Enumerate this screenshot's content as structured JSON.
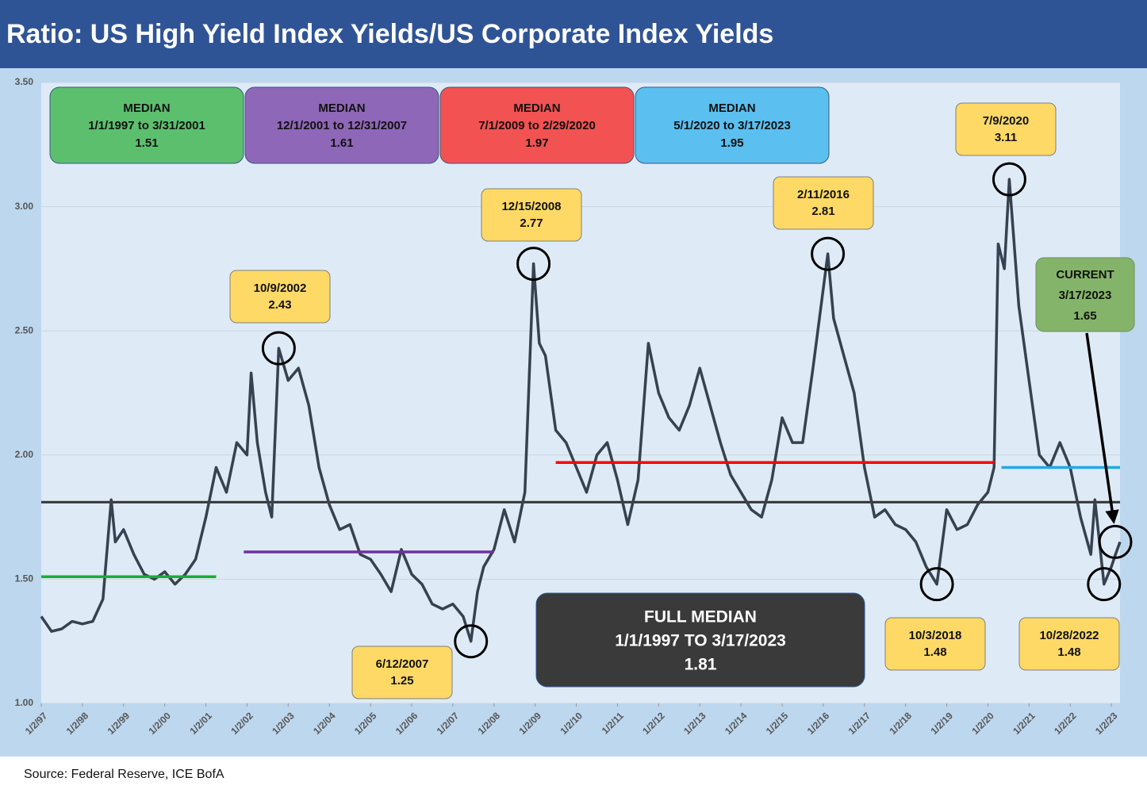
{
  "chart_data": {
    "type": "line",
    "title": "Ratio: US High Yield Index Yields/US Corporate Index Yields",
    "source": "Source: Federal Reserve, ICE BofA",
    "xlim": [
      1997.0,
      2023.21
    ],
    "ylim": [
      1.0,
      3.5
    ],
    "yticks": [
      {
        "value": 1.0,
        "label": "1.00"
      },
      {
        "value": 1.5,
        "label": "1.50"
      },
      {
        "value": 2.0,
        "label": "2.00"
      },
      {
        "value": 2.5,
        "label": "2.50"
      },
      {
        "value": 3.0,
        "label": "3.00"
      },
      {
        "value": 3.5,
        "label": "3.50"
      }
    ],
    "xticks": [
      {
        "value": 1997,
        "label": "1/2/97"
      },
      {
        "value": 1998,
        "label": "1/2/98"
      },
      {
        "value": 1999,
        "label": "1/2/99"
      },
      {
        "value": 2000,
        "label": "1/2/00"
      },
      {
        "value": 2001,
        "label": "1/2/01"
      },
      {
        "value": 2002,
        "label": "1/2/02"
      },
      {
        "value": 2003,
        "label": "1/2/03"
      },
      {
        "value": 2004,
        "label": "1/2/04"
      },
      {
        "value": 2005,
        "label": "1/2/05"
      },
      {
        "value": 2006,
        "label": "1/2/06"
      },
      {
        "value": 2007,
        "label": "1/2/07"
      },
      {
        "value": 2008,
        "label": "1/2/08"
      },
      {
        "value": 2009,
        "label": "1/2/09"
      },
      {
        "value": 2010,
        "label": "1/2/10"
      },
      {
        "value": 2011,
        "label": "1/2/11"
      },
      {
        "value": 2012,
        "label": "1/2/12"
      },
      {
        "value": 2013,
        "label": "1/2/13"
      },
      {
        "value": 2014,
        "label": "1/2/14"
      },
      {
        "value": 2015,
        "label": "1/2/15"
      },
      {
        "value": 2016,
        "label": "1/2/16"
      },
      {
        "value": 2017,
        "label": "1/2/17"
      },
      {
        "value": 2018,
        "label": "1/2/18"
      },
      {
        "value": 2019,
        "label": "1/2/19"
      },
      {
        "value": 2020,
        "label": "1/2/20"
      },
      {
        "value": 2021,
        "label": "1/2/21"
      },
      {
        "value": 2022,
        "label": "1/2/22"
      },
      {
        "value": 2023,
        "label": "1/2/23"
      }
    ],
    "grid": true,
    "series": [
      {
        "color": "#37414f",
        "x": [
          1997.0,
          1997.25,
          1997.5,
          1997.75,
          1998.0,
          1998.25,
          1998.5,
          1998.7,
          1998.8,
          1999.0,
          1999.25,
          1999.5,
          1999.75,
          2000.0,
          2000.25,
          2000.5,
          2000.75,
          2001.0,
          2001.25,
          2001.5,
          2001.75,
          2002.0,
          2002.1,
          2002.25,
          2002.45,
          2002.6,
          2002.77,
          2003.0,
          2003.25,
          2003.5,
          2003.75,
          2004.0,
          2004.25,
          2004.5,
          2004.75,
          2005.0,
          2005.25,
          2005.5,
          2005.75,
          2006.0,
          2006.25,
          2006.5,
          2006.75,
          2007.0,
          2007.25,
          2007.44,
          2007.6,
          2007.75,
          2008.0,
          2008.25,
          2008.5,
          2008.75,
          2008.96,
          2009.1,
          2009.25,
          2009.5,
          2009.75,
          2010.0,
          2010.25,
          2010.5,
          2010.75,
          2011.0,
          2011.25,
          2011.5,
          2011.75,
          2012.0,
          2012.25,
          2012.5,
          2012.75,
          2013.0,
          2013.25,
          2013.5,
          2013.75,
          2014.0,
          2014.25,
          2014.5,
          2014.75,
          2015.0,
          2015.25,
          2015.5,
          2015.75,
          2016.11,
          2016.25,
          2016.5,
          2016.75,
          2017.0,
          2017.25,
          2017.5,
          2017.75,
          2018.0,
          2018.25,
          2018.5,
          2018.76,
          2019.0,
          2019.25,
          2019.5,
          2019.75,
          2020.0,
          2020.15,
          2020.25,
          2020.4,
          2020.52,
          2020.75,
          2021.0,
          2021.25,
          2021.5,
          2021.75,
          2022.0,
          2022.25,
          2022.5,
          2022.6,
          2022.82,
          2023.0,
          2023.1,
          2023.21
        ],
        "values": [
          1.35,
          1.29,
          1.3,
          1.33,
          1.32,
          1.33,
          1.42,
          1.82,
          1.65,
          1.7,
          1.6,
          1.52,
          1.5,
          1.53,
          1.48,
          1.52,
          1.58,
          1.75,
          1.95,
          1.85,
          2.05,
          2.0,
          2.33,
          2.05,
          1.85,
          1.75,
          2.43,
          2.3,
          2.35,
          2.2,
          1.95,
          1.8,
          1.7,
          1.72,
          1.6,
          1.58,
          1.52,
          1.45,
          1.62,
          1.52,
          1.48,
          1.4,
          1.38,
          1.4,
          1.35,
          1.25,
          1.45,
          1.55,
          1.62,
          1.78,
          1.65,
          1.85,
          2.77,
          2.45,
          2.4,
          2.1,
          2.05,
          1.95,
          1.85,
          2.0,
          2.05,
          1.9,
          1.72,
          1.9,
          2.45,
          2.25,
          2.15,
          2.1,
          2.2,
          2.35,
          2.2,
          2.05,
          1.92,
          1.85,
          1.78,
          1.75,
          1.9,
          2.15,
          2.05,
          2.05,
          2.35,
          2.81,
          2.55,
          2.4,
          2.25,
          1.95,
          1.75,
          1.78,
          1.72,
          1.7,
          1.65,
          1.55,
          1.48,
          1.78,
          1.7,
          1.72,
          1.8,
          1.85,
          1.95,
          2.85,
          2.75,
          3.11,
          2.6,
          2.3,
          2.0,
          1.95,
          2.05,
          1.95,
          1.75,
          1.6,
          1.82,
          1.48,
          1.55,
          1.6,
          1.65
        ]
      }
    ],
    "medians": [
      {
        "title": "MEDIAN",
        "period": "1/1/1997 to 3/31/2001",
        "value": 1.51,
        "color": "#5cbf6e",
        "line_color": "#1aab3c",
        "start": 1997.0,
        "end": 2001.25
      },
      {
        "title": "MEDIAN",
        "period": "12/1/2001 to 12/31/2007",
        "value": 1.61,
        "color": "#8e67b8",
        "line_color": "#7030a0",
        "start": 2001.92,
        "end": 2008.0
      },
      {
        "title": "MEDIAN",
        "period": "7/1/2009 to 2/29/2020",
        "value": 1.97,
        "color": "#f25252",
        "line_color": "#ff0000",
        "start": 2009.5,
        "end": 2020.16
      },
      {
        "title": "MEDIAN",
        "period": "5/1/2020 to 3/17/2023",
        "value": 1.95,
        "color": "#5bbff0",
        "line_color": "#20a8e8",
        "start": 2020.33,
        "end": 2023.21
      }
    ],
    "full_median": {
      "title": "FULL MEDIAN",
      "period": "1/1/1997 TO 3/17/2023",
      "value": 1.81
    },
    "current": {
      "title": "CURRENT",
      "date": "3/17/2023",
      "value": 1.65
    },
    "annotations": [
      {
        "date": "10/9/2002",
        "value": 2.43
      },
      {
        "date": "6/12/2007",
        "value": 1.25
      },
      {
        "date": "12/15/2008",
        "value": 2.77
      },
      {
        "date": "2/11/2016",
        "value": 2.81
      },
      {
        "date": "7/9/2020",
        "value": 3.11
      },
      {
        "date": "10/3/2018",
        "value": 1.48
      },
      {
        "date": "10/28/2022",
        "value": 1.48
      }
    ]
  }
}
